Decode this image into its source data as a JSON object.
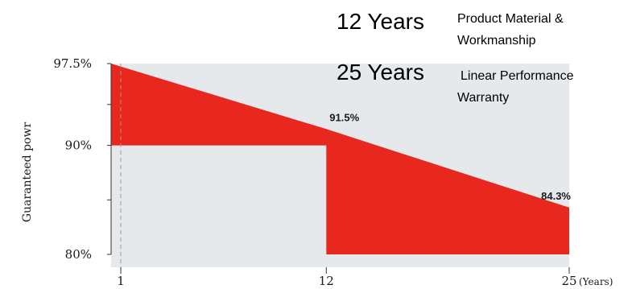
{
  "chart_data": {
    "type": "area",
    "ylabel": "Guaranteed powr",
    "xunit": "(Years)",
    "xlim": [
      1,
      25
    ],
    "ylim": [
      80,
      97.5
    ],
    "x_ticks": [
      {
        "value": 1,
        "label": "1"
      },
      {
        "value": 12,
        "label": "12"
      },
      {
        "value": 25,
        "label": "25"
      }
    ],
    "y_ticks": [
      {
        "value": 97.5,
        "label": "97.5%"
      },
      {
        "value": 90,
        "label": "90%"
      },
      {
        "value": 80,
        "label": "80%"
      }
    ],
    "y_minor_ticks": [
      93.75,
      85
    ],
    "series": [
      {
        "values": [
          [
            1,
            97.5
          ],
          [
            12,
            91.5
          ],
          [
            25,
            84.3
          ]
        ],
        "color": "#e8271e"
      }
    ],
    "step_baseline": [
      [
        1,
        90
      ],
      [
        12,
        90
      ],
      [
        12,
        80
      ],
      [
        25,
        80
      ]
    ],
    "data_labels": [
      {
        "x": 12,
        "y": 91.5,
        "label": "91.5%"
      },
      {
        "x": 25,
        "y": 84.3,
        "label": "84.3%"
      }
    ],
    "colors": {
      "fill": "#e8271e",
      "band": "#e5e9ec",
      "axis": "#333333",
      "guide": "#9a9a9a"
    }
  },
  "warranties": [
    {
      "years": "12 Years",
      "desc_lines": [
        "Product Material &",
        "Workmanship"
      ]
    },
    {
      "years": "25 Years",
      "desc_lines": [
        "Linear Performance",
        "Warranty"
      ]
    }
  ]
}
